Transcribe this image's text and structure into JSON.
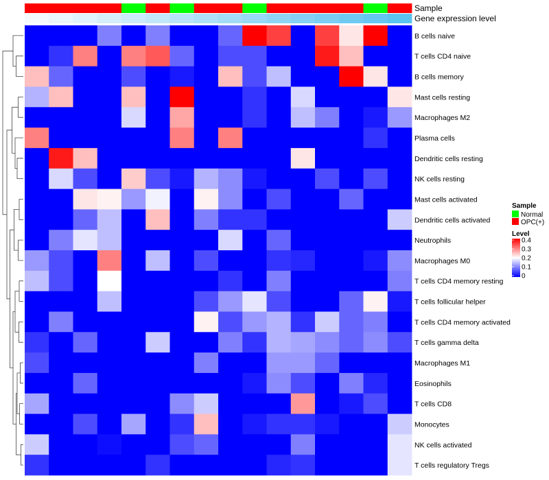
{
  "chart_data": {
    "type": "heatmap",
    "tracks": [
      "Sample",
      "Gene expression level"
    ],
    "rows": [
      "B cells naive",
      "T cells CD4 naive",
      "B cells memory",
      "Mast cells resting",
      "Macrophages M2",
      "Plasma cells",
      "Dendritic cells resting",
      "NK cells resting",
      "Mast cells activated",
      "Dendritic cells activated",
      "Neutrophils",
      "Macrophages M0",
      "T cells CD4 memory resting",
      "T cells follicular helper",
      "T cells CD4 memory activated",
      "T cells gamma delta",
      "Macrophages M1",
      "Eosinophils",
      "T cells CD8",
      "Monocytes",
      "NK cells activated",
      "T cells regulatory  Tregs"
    ],
    "sample_groups": [
      "OPC(+)",
      "OPC(+)",
      "OPC(+)",
      "OPC(+)",
      "Normal",
      "OPC(+)",
      "Normal",
      "OPC(+)",
      "OPC(+)",
      "Normal",
      "OPC(+)",
      "OPC(+)",
      "OPC(+)",
      "OPC(+)",
      "Normal",
      "OPC(+)"
    ],
    "expression_track": [
      0.0,
      0.02,
      0.04,
      0.06,
      0.08,
      0.1,
      0.12,
      0.14,
      0.16,
      0.18,
      0.2,
      0.22,
      0.24,
      0.26,
      0.28,
      0.3
    ],
    "values": [
      [
        0.0,
        0.0,
        0.0,
        0.1,
        0.0,
        0.1,
        0.0,
        0.0,
        0.08,
        0.4,
        0.35,
        0.0,
        0.35,
        0.22,
        0.4,
        0.0
      ],
      [
        0.0,
        0.04,
        0.3,
        0.0,
        0.3,
        0.33,
        0.08,
        0.0,
        0.06,
        0.06,
        0.0,
        0.0,
        0.38,
        0.25,
        0.0,
        0.0
      ],
      [
        0.25,
        0.08,
        0.0,
        0.0,
        0.06,
        0.0,
        0.02,
        0.0,
        0.25,
        0.06,
        0.15,
        0.0,
        0.0,
        0.4,
        0.22,
        0.0
      ],
      [
        0.14,
        0.25,
        0.0,
        0.0,
        0.25,
        0.0,
        0.4,
        0.0,
        0.0,
        0.04,
        0.0,
        0.17,
        0.0,
        0.0,
        0.0,
        0.22
      ],
      [
        0.0,
        0.0,
        0.0,
        0.0,
        0.17,
        0.0,
        0.27,
        0.0,
        0.0,
        0.04,
        0.0,
        0.15,
        0.1,
        0.0,
        0.02,
        0.12
      ],
      [
        0.3,
        0.0,
        0.0,
        0.0,
        0.0,
        0.0,
        0.3,
        0.0,
        0.3,
        0.0,
        0.0,
        0.0,
        0.0,
        0.0,
        0.04,
        0.0
      ],
      [
        0.0,
        0.38,
        0.25,
        0.0,
        0.0,
        0.0,
        0.0,
        0.0,
        0.0,
        0.0,
        0.0,
        0.22,
        0.0,
        0.0,
        0.0,
        0.0
      ],
      [
        0.0,
        0.17,
        0.06,
        0.0,
        0.24,
        0.06,
        0.02,
        0.14,
        0.11,
        0.02,
        0.0,
        0.0,
        0.06,
        0.0,
        0.06,
        0.0
      ],
      [
        0.0,
        0.0,
        0.22,
        0.21,
        0.12,
        0.19,
        0.0,
        0.21,
        0.11,
        0.0,
        0.06,
        0.0,
        0.0,
        0.08,
        0.0,
        0.0
      ],
      [
        0.0,
        0.0,
        0.08,
        0.15,
        0.0,
        0.25,
        0.0,
        0.1,
        0.04,
        0.04,
        0.0,
        0.0,
        0.0,
        0.0,
        0.0,
        0.16
      ],
      [
        0.0,
        0.1,
        0.18,
        0.15,
        0.0,
        0.0,
        0.0,
        0.0,
        0.17,
        0.0,
        0.08,
        0.0,
        0.0,
        0.0,
        0.0,
        0.0
      ],
      [
        0.12,
        0.06,
        0.0,
        0.3,
        0.0,
        0.15,
        0.0,
        0.06,
        0.0,
        0.0,
        0.04,
        0.03,
        0.0,
        0.0,
        0.02,
        0.11
      ],
      [
        0.15,
        0.06,
        0.0,
        0.2,
        0.0,
        0.0,
        0.0,
        0.0,
        0.04,
        0.0,
        0.1,
        0.0,
        0.0,
        0.0,
        0.0,
        0.1
      ],
      [
        0.0,
        0.0,
        0.0,
        0.15,
        0.0,
        0.0,
        0.0,
        0.06,
        0.12,
        0.18,
        0.06,
        0.0,
        0.0,
        0.08,
        0.21,
        0.02
      ],
      [
        0.0,
        0.1,
        0.0,
        0.0,
        0.0,
        0.0,
        0.0,
        0.21,
        0.06,
        0.12,
        0.14,
        0.04,
        0.16,
        0.08,
        0.1,
        0.0
      ],
      [
        0.04,
        0.0,
        0.08,
        0.0,
        0.0,
        0.16,
        0.0,
        0.0,
        0.1,
        0.04,
        0.14,
        0.13,
        0.11,
        0.08,
        0.11,
        0.06
      ],
      [
        0.06,
        0.0,
        0.0,
        0.0,
        0.0,
        0.0,
        0.0,
        0.1,
        0.0,
        0.0,
        0.12,
        0.12,
        0.08,
        0.0,
        0.0,
        0.0
      ],
      [
        0.0,
        0.0,
        0.08,
        0.0,
        0.0,
        0.0,
        0.0,
        0.0,
        0.0,
        0.02,
        0.11,
        0.06,
        0.0,
        0.1,
        0.03,
        0.0
      ],
      [
        0.13,
        0.0,
        0.0,
        0.0,
        0.0,
        0.0,
        0.11,
        0.16,
        0.0,
        0.0,
        0.0,
        0.28,
        0.0,
        0.02,
        0.06,
        0.0
      ],
      [
        0.0,
        0.0,
        0.06,
        0.0,
        0.13,
        0.0,
        0.04,
        0.25,
        0.0,
        0.02,
        0.04,
        0.04,
        0.02,
        0.0,
        0.0,
        0.16
      ],
      [
        0.16,
        0.0,
        0.0,
        0.01,
        0.0,
        0.0,
        0.06,
        0.08,
        0.0,
        0.0,
        0.0,
        0.1,
        0.0,
        0.0,
        0.0,
        0.18
      ],
      [
        0.04,
        0.0,
        0.0,
        0.0,
        0.0,
        0.04,
        0.0,
        0.0,
        0.0,
        0.0,
        0.03,
        0.04,
        0.0,
        0.0,
        0.0,
        0.18
      ]
    ],
    "color_scale": {
      "low": "#0000ff",
      "mid": "#ffffff",
      "high": "#ff0000",
      "range": [
        0,
        0.4
      ]
    },
    "legend": {
      "sample_title": "Sample",
      "sample_entries": [
        {
          "label": "Normal",
          "color": "#00ff00"
        },
        {
          "label": "OPC(+)",
          "color": "#ff0000"
        }
      ],
      "level_title": "Level",
      "level_ticks": [
        "0.4",
        "0.3",
        "0.2",
        "0.1",
        "0"
      ],
      "placement": "right"
    },
    "expression_track_colors": {
      "low": "#f4f9fd",
      "high": "#5bc3f0"
    },
    "row_dendrogram": true
  }
}
